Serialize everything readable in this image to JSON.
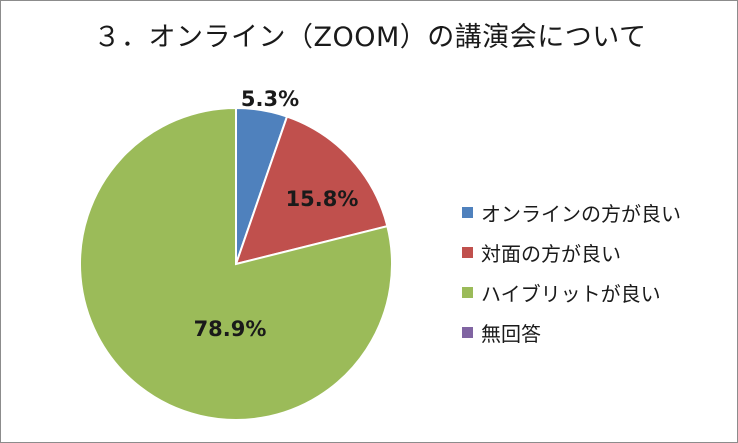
{
  "chart_data": {
    "type": "pie",
    "title": "３．オンライン（ZOOM）の講演会について",
    "categories": [
      "オンラインの方が良い",
      "対面の方が良い",
      "ハイブリットが良い",
      "無回答"
    ],
    "values": [
      5.3,
      15.8,
      78.9,
      0
    ],
    "data_labels": [
      "5.3%",
      "15.8%",
      "78.9%",
      ""
    ],
    "colors": [
      "#4f81bd",
      "#c0504d",
      "#9bbb59",
      "#8064a2"
    ],
    "legend_position": "right"
  }
}
